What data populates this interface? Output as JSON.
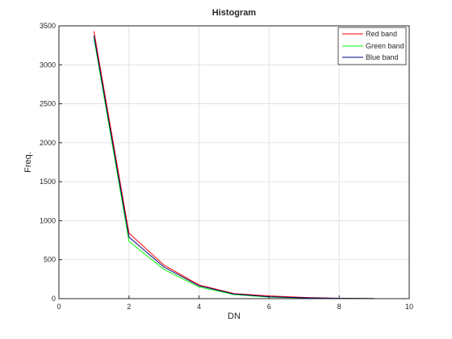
{
  "chart_data": {
    "type": "line",
    "title": "Histogram",
    "xlabel": "DN",
    "ylabel": "Freq.",
    "xlim": [
      0,
      10
    ],
    "ylim": [
      0,
      3500
    ],
    "xticks": [
      0,
      2,
      4,
      6,
      8,
      10
    ],
    "yticks": [
      0,
      500,
      1000,
      1500,
      2000,
      2500,
      3000,
      3500
    ],
    "grid": true,
    "legend_position": "top-right",
    "x": [
      1,
      2,
      3,
      4,
      5,
      6,
      7,
      8,
      9
    ],
    "series": [
      {
        "name": "Red band",
        "color": "#ff0000",
        "values": [
          3430,
          840,
          430,
          175,
          65,
          35,
          15,
          5,
          2
        ]
      },
      {
        "name": "Green band",
        "color": "#00ff00",
        "values": [
          3340,
          735,
          375,
          150,
          52,
          20,
          8,
          3,
          1
        ]
      },
      {
        "name": "Blue band",
        "color": "#000080",
        "values": [
          3375,
          790,
          405,
          165,
          60,
          25,
          10,
          4,
          1
        ]
      }
    ]
  }
}
